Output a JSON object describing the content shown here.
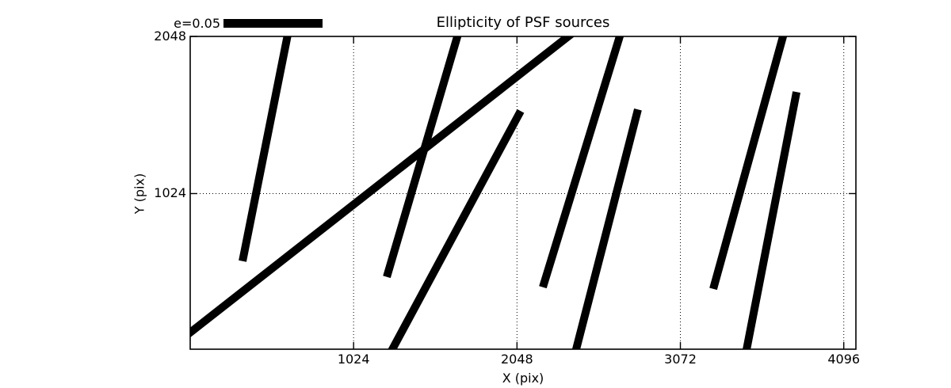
{
  "colors": {
    "line": "#000000",
    "background": "#ffffff"
  },
  "chart_data": {
    "type": "line",
    "subtype": "psf-ellipticity-whiskers",
    "title": "Ellipticity of PSF sources",
    "xlabel": "X (pix)",
    "ylabel": "Y (pix)",
    "xlim": [
      0,
      4172
    ],
    "ylim": [
      10,
      2048
    ],
    "x_ticks": [
      1024,
      2048,
      3072,
      4096
    ],
    "y_ticks": [
      1024,
      2048
    ],
    "grid": "dotted",
    "legend": {
      "label": "e=0.05",
      "position": "outside-upper-left"
    },
    "segments": [
      {
        "x": [
          328,
          619
        ],
        "y": [
          584,
          2100
        ]
      },
      {
        "x": [
          -50,
          2433
        ],
        "y": [
          78,
          2100
        ]
      },
      {
        "x": [
          1232,
          1689
        ],
        "y": [
          481,
          2100
        ]
      },
      {
        "x": [
          1236,
          2071
        ],
        "y": [
          -50,
          1562
        ]
      },
      {
        "x": [
          2210,
          2707
        ],
        "y": [
          414,
          2100
        ]
      },
      {
        "x": [
          2404,
          2806
        ],
        "y": [
          -50,
          1572
        ]
      },
      {
        "x": [
          3278,
          3729
        ],
        "y": [
          403,
          2100
        ]
      },
      {
        "x": [
          3476,
          3800
        ],
        "y": [
          -50,
          1686
        ]
      }
    ]
  }
}
